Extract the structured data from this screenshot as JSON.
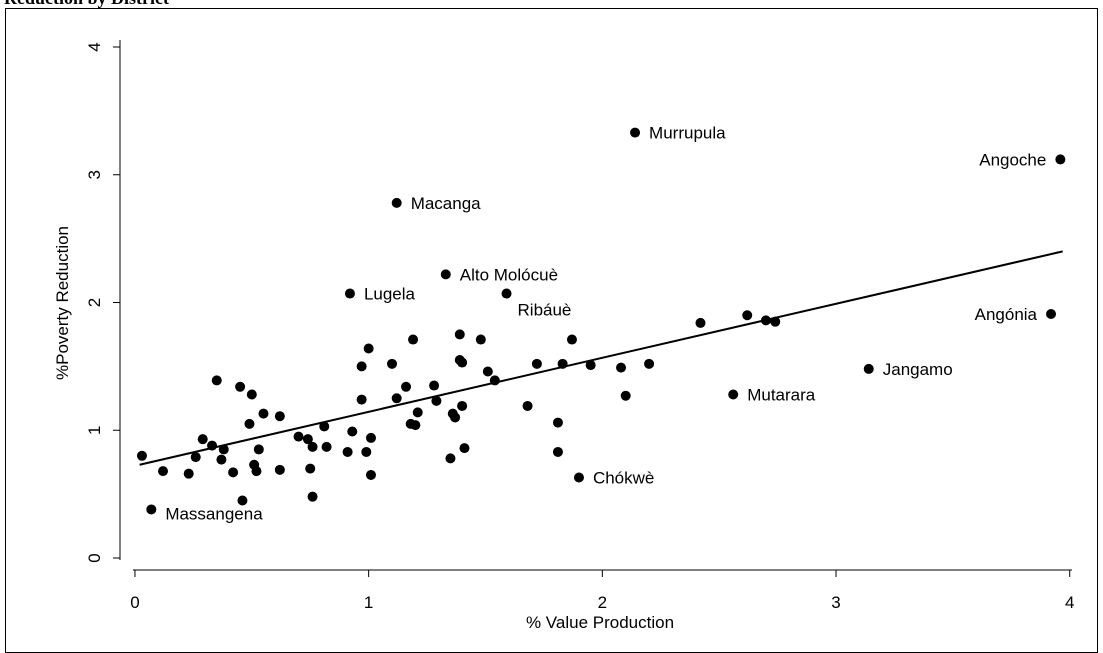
{
  "chart_data": {
    "type": "scatter",
    "title": "Reduction by District",
    "x_label": "% Value Production",
    "y_label": "%Poverty Reduction",
    "xlim": [
      -0.064,
      4.044
    ],
    "ylim": [
      -0.094,
      4.0
    ],
    "xticks": [
      0,
      1,
      2,
      3,
      4
    ],
    "yticks": [
      0,
      1,
      2,
      3,
      4
    ],
    "color": "#000000",
    "grid": false,
    "series": [
      {
        "x": [
          2.14,
          3.96,
          1.12,
          1.33,
          0.92,
          1.59,
          3.92,
          3.14,
          2.56,
          1.9,
          0.07,
          0.03,
          0.12,
          0.23,
          0.26,
          0.29,
          0.33,
          0.35,
          0.37,
          0.38,
          0.42,
          0.45,
          0.46,
          0.49,
          0.5,
          0.51,
          0.52,
          0.53,
          0.55,
          0.62,
          0.62,
          0.7,
          0.74,
          0.75,
          0.76,
          0.76,
          0.81,
          0.82,
          0.91,
          0.93,
          0.97,
          0.97,
          0.99,
          1.0,
          1.01,
          1.01,
          1.1,
          1.12,
          1.16,
          1.18,
          1.19,
          1.2,
          1.21,
          1.28,
          1.29,
          1.35,
          1.36,
          1.37,
          1.39,
          1.39,
          1.4,
          1.4,
          1.41,
          1.48,
          1.51,
          1.54,
          1.68,
          1.72,
          1.81,
          1.81,
          1.83,
          1.87,
          1.95,
          2.08,
          2.1,
          2.2,
          2.42,
          2.62,
          2.7,
          2.74
        ],
        "y": [
          3.33,
          3.12,
          2.78,
          2.22,
          2.07,
          2.07,
          1.91,
          1.48,
          1.28,
          0.63,
          0.38,
          0.8,
          0.68,
          0.66,
          0.79,
          0.93,
          0.88,
          1.39,
          0.77,
          0.85,
          0.67,
          1.34,
          0.45,
          1.05,
          1.28,
          0.73,
          0.68,
          0.85,
          1.13,
          1.11,
          0.69,
          0.95,
          0.93,
          0.7,
          0.87,
          0.48,
          1.03,
          0.87,
          0.83,
          0.99,
          1.5,
          1.24,
          0.83,
          1.64,
          0.94,
          0.65,
          1.52,
          1.25,
          1.34,
          1.05,
          1.71,
          1.04,
          1.14,
          1.35,
          1.23,
          0.78,
          1.13,
          1.1,
          1.55,
          1.75,
          1.53,
          1.19,
          0.86,
          1.71,
          1.46,
          1.39,
          1.19,
          1.52,
          1.06,
          0.83,
          1.52,
          1.71,
          1.51,
          1.49,
          1.27,
          1.52,
          1.84,
          1.9,
          1.86,
          1.85
        ],
        "labels": [
          "Murrupula",
          "Angoche",
          "Macanga",
          "Alto Molócuè",
          "Lugela",
          "Ribáuè",
          "Angónia",
          "Jangamo",
          "Mutarara",
          "Chókwè",
          "Massangena",
          null,
          null,
          null,
          null,
          null,
          null,
          null,
          null,
          null,
          null,
          null,
          null,
          null,
          null,
          null,
          null,
          null,
          null,
          null,
          null,
          null,
          null,
          null,
          null,
          null,
          null,
          null,
          null,
          null,
          null,
          null,
          null,
          null,
          null,
          null,
          null,
          null,
          null,
          null,
          null,
          null,
          null,
          null,
          null,
          null,
          null,
          null,
          null,
          null,
          null,
          null,
          null,
          null,
          null,
          null,
          null,
          null,
          null,
          null,
          null,
          null,
          null,
          null,
          null,
          null,
          null,
          null,
          null,
          null
        ]
      }
    ],
    "fit": {
      "x": [
        0.02,
        3.97
      ],
      "y": [
        0.73,
        2.4
      ]
    }
  }
}
